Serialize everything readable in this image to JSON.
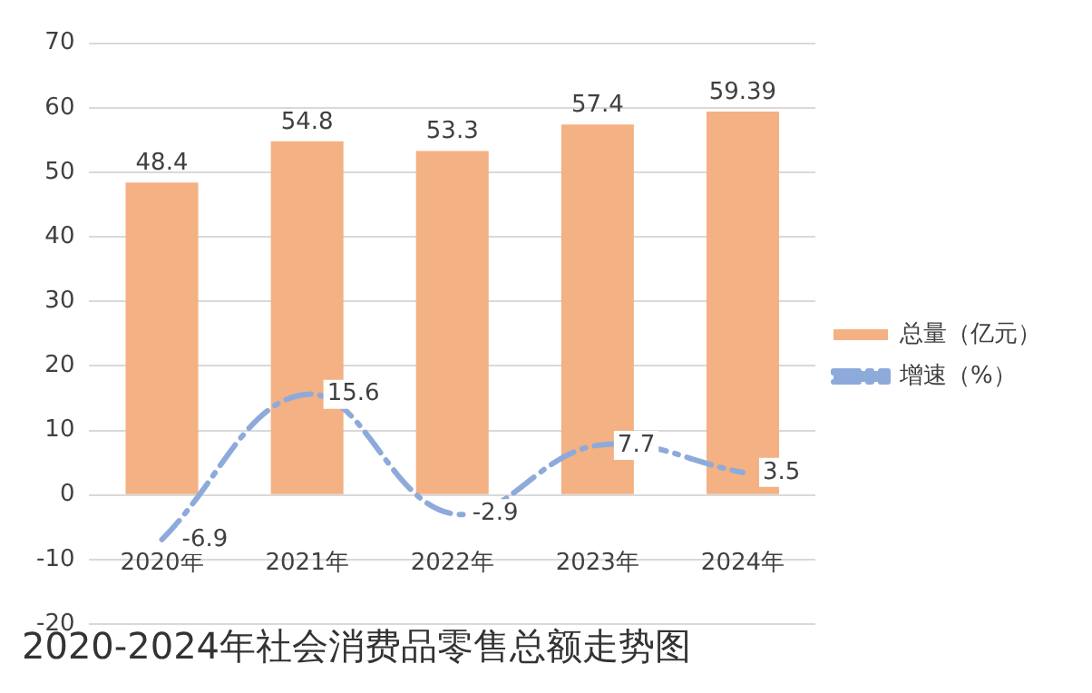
{
  "chart_data": {
    "type": "bar",
    "title": "2020-2024年社会消费品零售总额走势图",
    "categories": [
      "2020年",
      "2021年",
      "2022年",
      "2023年",
      "2024年"
    ],
    "series": [
      {
        "name": "总量（亿元）",
        "color": "#f4b183",
        "values": [
          48.4,
          54.8,
          53.3,
          57.4,
          59.39
        ]
      },
      {
        "name": "增速（%）",
        "type": "line",
        "color": "#8eaadb",
        "line_style": "dashed",
        "values": [
          -6.9,
          15.6,
          -2.9,
          7.7,
          3.5
        ]
      }
    ],
    "ylim": [
      -20,
      70
    ],
    "yticks": [
      -20,
      -10,
      0,
      10,
      20,
      30,
      40,
      50,
      60,
      70
    ],
    "grid": "y",
    "legend": "right",
    "data_labels": true
  }
}
